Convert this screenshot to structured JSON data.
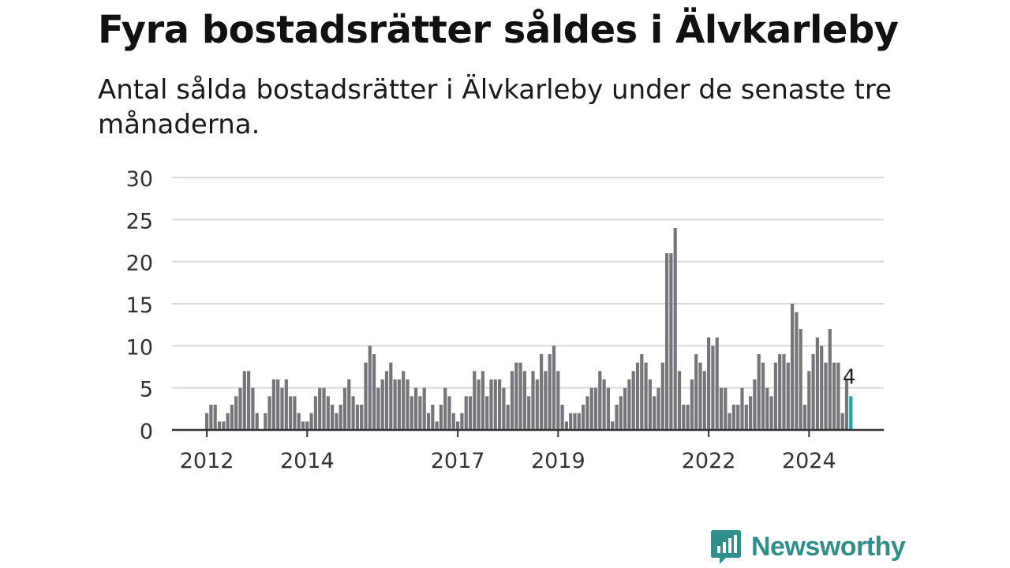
{
  "title": "Fyra bostadsrätter såldes i Älvkarleby",
  "subtitle": "Antal sålda bostadsrätter i Älvkarleby under de senaste tre månaderna.",
  "brand": {
    "name": "Newsworthy",
    "color": "#2f8f8a",
    "icon": "newsworthy-logo-icon"
  },
  "chart_data": {
    "type": "bar",
    "ylim": [
      0,
      30
    ],
    "yticks": [
      0,
      5,
      10,
      15,
      20,
      25,
      30
    ],
    "xtick_labels": [
      "2012",
      "2014",
      "2017",
      "2019",
      "2022",
      "2024"
    ],
    "xtick_index": [
      0,
      24,
      60,
      84,
      120,
      144
    ],
    "grid": true,
    "bar_color": "#76757c",
    "highlight_color": "#19a99e",
    "highlight_label": "4",
    "values": [
      2,
      3,
      3,
      1,
      1,
      2,
      3,
      4,
      5,
      7,
      7,
      5,
      2,
      0,
      2,
      4,
      6,
      6,
      5,
      6,
      4,
      4,
      2,
      1,
      1,
      2,
      4,
      5,
      5,
      4,
      3,
      2,
      3,
      5,
      6,
      4,
      3,
      3,
      8,
      10,
      9,
      5,
      6,
      7,
      8,
      6,
      6,
      7,
      6,
      4,
      5,
      4,
      5,
      2,
      3,
      1,
      3,
      5,
      4,
      2,
      1,
      2,
      4,
      4,
      7,
      6,
      7,
      4,
      6,
      6,
      6,
      5,
      3,
      7,
      8,
      8,
      7,
      4,
      7,
      6,
      9,
      7,
      9,
      10,
      7,
      3,
      1,
      2,
      2,
      2,
      3,
      4,
      5,
      5,
      7,
      6,
      5,
      1,
      3,
      4,
      5,
      6,
      7,
      8,
      9,
      8,
      6,
      4,
      5,
      8,
      21,
      21,
      24,
      7,
      3,
      3,
      6,
      9,
      8,
      7,
      11,
      10,
      11,
      5,
      5,
      2,
      3,
      3,
      5,
      3,
      4,
      6,
      9,
      8,
      5,
      4,
      8,
      9,
      9,
      8,
      15,
      14,
      12,
      3,
      7,
      9,
      11,
      10,
      8,
      12,
      8,
      8,
      2,
      6,
      4
    ]
  }
}
